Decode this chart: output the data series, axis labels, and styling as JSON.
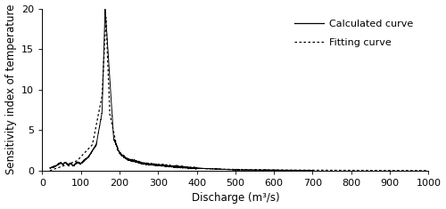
{
  "xlabel": "Discharge (m³/s)",
  "ylabel": "Sensitivity index of temperature",
  "xlim": [
    0,
    1000
  ],
  "ylim": [
    0,
    20
  ],
  "yticks": [
    0,
    5,
    10,
    15,
    20
  ],
  "xticks": [
    0,
    100,
    200,
    300,
    400,
    500,
    600,
    700,
    800,
    900,
    1000
  ],
  "legend_labels": [
    "Calculated curve",
    "Fitting curve"
  ],
  "line_color": "#000000",
  "background_color": "#ffffff",
  "fontsize": 8.5
}
